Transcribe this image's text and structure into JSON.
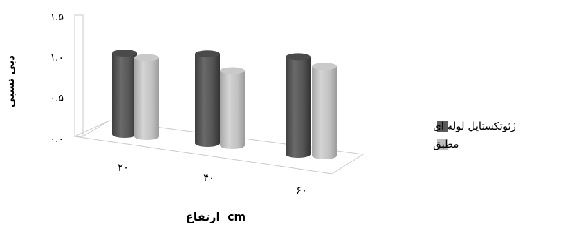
{
  "chart_data": {
    "type": "bar",
    "xlabel": "cm  ارتفاع",
    "ylabel": "دبی نسبی",
    "categories": [
      "۲۰",
      "۴۰",
      "۶۰"
    ],
    "yticks": [
      "۰.۰",
      "۰.۵",
      "۱.۰",
      "۱.۵"
    ],
    "ylim": [
      0,
      1.5
    ],
    "series": [
      {
        "name": "ژئوتکستایل لوله ای",
        "values": [
          1.0,
          1.1,
          1.2
        ],
        "color": "#5a5a5a"
      },
      {
        "name": "مطبق",
        "values": [
          0.97,
          0.92,
          1.1
        ],
        "color": "#bdbdbd"
      }
    ],
    "grid": false,
    "legend_position": "right",
    "style": "3d-cylinder"
  }
}
